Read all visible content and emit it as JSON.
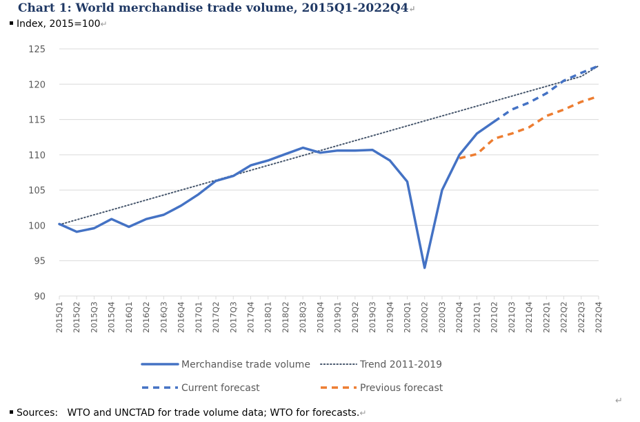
{
  "header": {
    "title": "Chart 1: World merchandise trade volume, 2015Q1-2022Q4",
    "subtitle": "Index, 2015=100",
    "mark": "↵"
  },
  "footer": {
    "sources_label": "Sources:",
    "sources_text": "WTO and UNCTAD for trade volume data; WTO for forecasts."
  },
  "chart_data": {
    "type": "line",
    "title": "Chart 1: World merchandise trade volume, 2015Q1-2022Q4",
    "subtitle": "Index, 2015=100",
    "ylim": [
      90,
      125
    ],
    "yticks": [
      90,
      95,
      100,
      105,
      110,
      115,
      120,
      125
    ],
    "grid": true,
    "legend_position": "bottom",
    "categories": [
      "2015Q1",
      "2015Q2",
      "2015Q3",
      "2015Q4",
      "2016Q1",
      "2016Q2",
      "2016Q3",
      "2016Q4",
      "2017Q1",
      "2017Q2",
      "2017Q3",
      "2017Q4",
      "2018Q1",
      "2018Q2",
      "2018Q3",
      "2018Q4",
      "2019Q1",
      "2019Q2",
      "2019Q3",
      "2019Q4",
      "2020Q1",
      "2020Q2",
      "2020Q3",
      "2020Q4",
      "2021Q1",
      "2021Q2",
      "2021Q3",
      "2021Q4",
      "2022Q1",
      "2022Q2",
      "2022Q3",
      "2022Q4"
    ],
    "series": [
      {
        "name": "Merchandise trade volume",
        "style": "solid",
        "color": "#4472c4",
        "values": [
          100.2,
          99.1,
          99.6,
          100.9,
          99.8,
          100.9,
          101.5,
          102.8,
          104.4,
          106.3,
          107.0,
          108.5,
          109.2,
          110.1,
          111.0,
          110.3,
          110.6,
          110.6,
          110.7,
          109.2,
          106.2,
          94.0,
          105.0,
          110.0,
          113.0,
          114.7,
          null,
          null,
          null,
          null,
          null,
          null
        ]
      },
      {
        "name": "Trend 2011-2019",
        "style": "dotted",
        "color": "#44546a",
        "values": [
          100.1,
          100.8,
          101.5,
          102.2,
          102.9,
          103.6,
          104.3,
          105.0,
          105.7,
          106.4,
          107.1,
          107.8,
          108.5,
          109.2,
          109.9,
          110.6,
          111.3,
          112.0,
          112.7,
          113.4,
          114.1,
          114.8,
          115.5,
          116.2,
          116.9,
          117.6,
          118.3,
          119.0,
          119.7,
          120.4,
          121.1,
          122.6
        ]
      },
      {
        "name": "Current forecast",
        "style": "dashed",
        "color": "#4472c4",
        "values": [
          null,
          null,
          null,
          null,
          null,
          null,
          null,
          null,
          null,
          null,
          null,
          null,
          null,
          null,
          null,
          null,
          null,
          null,
          null,
          null,
          null,
          null,
          null,
          null,
          null,
          114.7,
          116.4,
          117.4,
          118.7,
          120.5,
          121.6,
          122.6
        ]
      },
      {
        "name": "Previous forecast",
        "style": "dashed",
        "color": "#ed7d31",
        "values": [
          null,
          null,
          null,
          null,
          null,
          null,
          null,
          null,
          null,
          null,
          null,
          null,
          null,
          null,
          null,
          null,
          null,
          null,
          null,
          null,
          null,
          null,
          null,
          109.5,
          110.1,
          112.3,
          113.0,
          113.9,
          115.5,
          116.4,
          117.5,
          118.3
        ]
      }
    ]
  }
}
